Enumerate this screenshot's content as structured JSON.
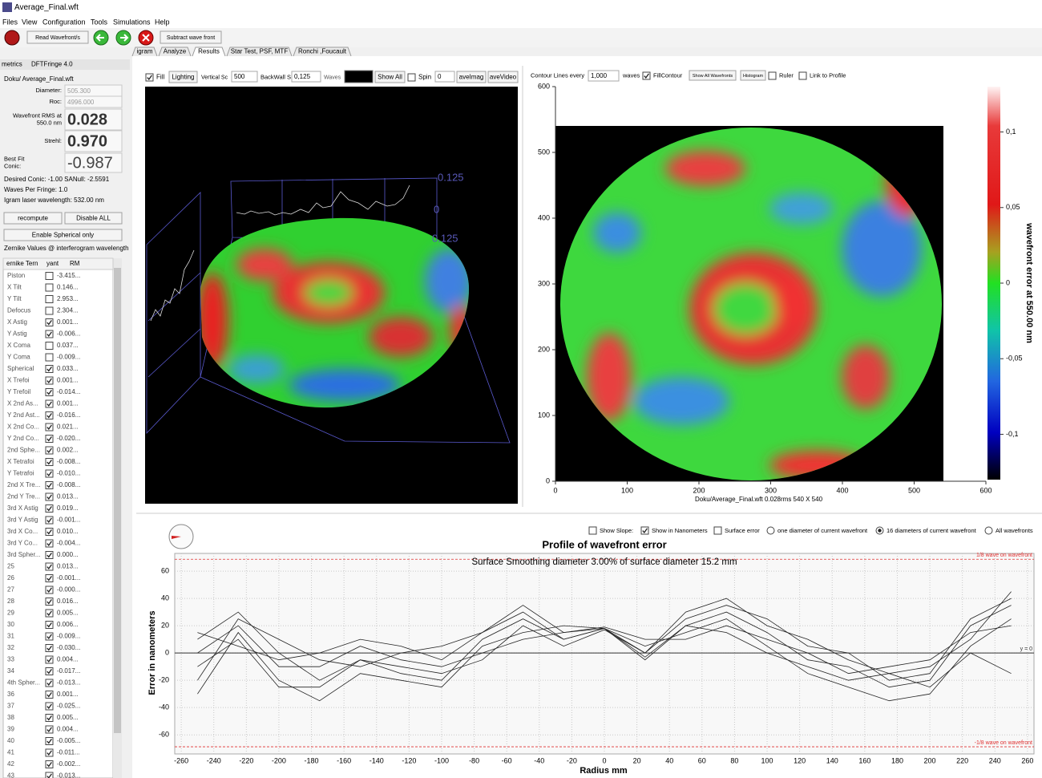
{
  "window": {
    "title": "Average_Final.wft"
  },
  "menu": [
    "Files",
    "View",
    "Configuration",
    "Tools",
    "Simulations",
    "Help"
  ],
  "toolbar": {
    "read": "Read Wavefront/s",
    "subtract": "Subtract wave front"
  },
  "tabs": [
    "igram",
    "Analyze",
    "Results",
    "Star Test, PSF, MTF",
    "Ronchi ,Foucault"
  ],
  "active_tab": 2,
  "left": {
    "dock_title": "metrics",
    "version": "DFTFringe 4.0",
    "file": "Doku/ Average_Final.wft",
    "fields": [
      {
        "label": [
          "Diameter:"
        ],
        "value": "505.300",
        "big": false
      },
      {
        "label": [
          "Roc:"
        ],
        "value": "4996.000",
        "big": false
      },
      {
        "label": [
          "Wavefront RMS at",
          "550.0 nm"
        ],
        "value": "0.028",
        "big": true
      },
      {
        "label": [
          "Strehl:"
        ],
        "value": "0.970",
        "big": true
      },
      {
        "label": [
          "Best Fit",
          "Conic:"
        ],
        "value": "-0.987",
        "big": true
      }
    ],
    "info": [
      "Desired Conic: -1.00 SANull: -2.5591",
      "Waves Per Fringe: 1.0",
      "Igram laser wavelength: 532.00 nm"
    ],
    "buttons": [
      "recompute",
      "Disable ALL",
      "Enable Spherical only"
    ],
    "zernike_caption": "Zernike Values @ interferogram wavelength",
    "zernike_header": [
      "ernike Tern",
      "yant",
      "RM"
    ],
    "zernike": [
      {
        "name": "Piston",
        "checked": false,
        "value": "-3.415..."
      },
      {
        "name": "X Tilt",
        "checked": false,
        "value": "0.146..."
      },
      {
        "name": "Y Tilt",
        "checked": false,
        "value": "2.953..."
      },
      {
        "name": "Defocus",
        "checked": false,
        "value": "2.304..."
      },
      {
        "name": "X Astig",
        "checked": true,
        "value": "0.001..."
      },
      {
        "name": "Y Astig",
        "checked": true,
        "value": "-0.006..."
      },
      {
        "name": "X Coma",
        "checked": false,
        "value": "0.037..."
      },
      {
        "name": "Y Coma",
        "checked": false,
        "value": "-0.009..."
      },
      {
        "name": "Spherical",
        "checked": true,
        "value": "0.033..."
      },
      {
        "name": "X Trefoi",
        "checked": true,
        "value": "0.001..."
      },
      {
        "name": "Y Trefoil",
        "checked": true,
        "value": "-0.014..."
      },
      {
        "name": "X 2nd As...",
        "checked": true,
        "value": "0.001..."
      },
      {
        "name": "Y 2nd Ast...",
        "checked": true,
        "value": "-0.016..."
      },
      {
        "name": "X 2nd Co...",
        "checked": true,
        "value": "0.021..."
      },
      {
        "name": "Y 2nd Co...",
        "checked": true,
        "value": "-0.020..."
      },
      {
        "name": "2nd Sphe...",
        "checked": true,
        "value": "0.002..."
      },
      {
        "name": "X Tetrafoi",
        "checked": true,
        "value": "-0.008..."
      },
      {
        "name": "Y Tetrafoi",
        "checked": true,
        "value": "-0.010..."
      },
      {
        "name": "2nd X Tre...",
        "checked": true,
        "value": "-0.008..."
      },
      {
        "name": "2nd Y Tre...",
        "checked": true,
        "value": "0.013..."
      },
      {
        "name": "3rd X Astig",
        "checked": true,
        "value": "0.019..."
      },
      {
        "name": "3rd Y Astig",
        "checked": true,
        "value": "-0.001..."
      },
      {
        "name": "3rd X Co...",
        "checked": true,
        "value": "0.010..."
      },
      {
        "name": "3rd Y Co...",
        "checked": true,
        "value": "-0.004..."
      },
      {
        "name": "3rd Spher...",
        "checked": true,
        "value": "0.000..."
      },
      {
        "name": "25",
        "checked": true,
        "value": "0.013..."
      },
      {
        "name": "26",
        "checked": true,
        "value": "-0.001..."
      },
      {
        "name": "27",
        "checked": true,
        "value": "-0.000..."
      },
      {
        "name": "28",
        "checked": true,
        "value": "0.016..."
      },
      {
        "name": "29",
        "checked": true,
        "value": "0.005..."
      },
      {
        "name": "30",
        "checked": true,
        "value": "0.006..."
      },
      {
        "name": "31",
        "checked": true,
        "value": "-0.009..."
      },
      {
        "name": "32",
        "checked": true,
        "value": "-0.030..."
      },
      {
        "name": "33",
        "checked": true,
        "value": "0.004..."
      },
      {
        "name": "34",
        "checked": true,
        "value": "-0.017..."
      },
      {
        "name": "4th Spher...",
        "checked": true,
        "value": "-0.013..."
      },
      {
        "name": "36",
        "checked": true,
        "value": "0.001..."
      },
      {
        "name": "37",
        "checked": true,
        "value": "-0.025..."
      },
      {
        "name": "38",
        "checked": true,
        "value": "0.005..."
      },
      {
        "name": "39",
        "checked": true,
        "value": "0.004..."
      },
      {
        "name": "40",
        "checked": true,
        "value": "-0.005..."
      },
      {
        "name": "41",
        "checked": true,
        "value": "-0.011..."
      },
      {
        "name": "42",
        "checked": true,
        "value": "-0.002..."
      },
      {
        "name": "43",
        "checked": true,
        "value": "-0.013..."
      }
    ]
  },
  "view3d": {
    "fill": "Fill",
    "fill_checked": true,
    "lighting": "Lighting",
    "vscale_label": "Vertical Sc",
    "vscale": "500",
    "backwall_label": "BackWall S",
    "backwall": "0,125",
    "waves": "Waves",
    "show_all": "Show All",
    "spin_label": "Spin",
    "spin_checked": false,
    "spin": "0",
    "save_image": "aveImag",
    "save_video": "aveVideo",
    "labels": [
      "0.125",
      "0",
      "0.125"
    ]
  },
  "contour_controls": {
    "lines_label": "Contour Lines every",
    "lines": "1,000",
    "waves": "waves",
    "fill": "FillContour",
    "fill_checked": true,
    "show_all": "Show All Wavefronts",
    "histogram": "Histogram",
    "ruler": "Ruler",
    "ruler_checked": false,
    "link": "Link to Profile",
    "link_checked": false
  },
  "profile_controls": [
    {
      "label": "Show Slope:",
      "kind": "check",
      "on": false
    },
    {
      "label": "Show in Nanometers",
      "kind": "check",
      "on": true
    },
    {
      "label": "Surface error",
      "kind": "check",
      "on": false
    },
    {
      "label": "one diameter of current wavefront",
      "kind": "radio",
      "on": false
    },
    {
      "label": "16 diameters of current wavefront",
      "kind": "radio",
      "on": true
    },
    {
      "label": "All wavefronts",
      "kind": "radio",
      "on": false
    }
  ],
  "chart_data": [
    {
      "type": "image",
      "caption": "Doku/Average_Final.wft  0.028rms 540 X 540",
      "xlim": [
        0,
        600
      ],
      "ylim": [
        0,
        600
      ],
      "xticks": [
        0,
        100,
        200,
        300,
        400,
        500,
        600
      ],
      "yticks": [
        0,
        100,
        200,
        300,
        400,
        500,
        600
      ],
      "colorbar": {
        "label": "wavefront error at 550.00 nm",
        "lim": [
          -0.13,
          0.13
        ],
        "ticks": [
          {
            "value": 0.1,
            "label": "0,1"
          },
          {
            "value": 0.05,
            "label": "0,05"
          },
          0,
          {
            "value": -0.05,
            "label": "-0,05"
          },
          {
            "value": -0.1,
            "label": "-0,1"
          }
        ]
      }
    },
    {
      "type": "line",
      "title": "Profile of wavefront error",
      "subtitle": "Surface Smoothing diameter   3.00% of surface diameter   15.2 mm",
      "xlabel": "Radius mm",
      "ylabel": "Error in nanometers",
      "x": [
        -250,
        -225,
        -200,
        -175,
        -150,
        -125,
        -100,
        -75,
        -50,
        -25,
        0,
        25,
        50,
        75,
        100,
        125,
        150,
        175,
        200,
        225,
        250
      ],
      "series": [
        {
          "color": "#222222",
          "values": [
            -20,
            25,
            10,
            -5,
            -10,
            0,
            5,
            15,
            35,
            15,
            18,
            0,
            30,
            40,
            20,
            10,
            -5,
            -15,
            -10,
            10,
            45
          ]
        },
        {
          "color": "#222222",
          "values": [
            10,
            30,
            0,
            -20,
            -5,
            -15,
            -20,
            10,
            25,
            10,
            18,
            -5,
            20,
            30,
            15,
            -5,
            -10,
            -25,
            -20,
            20,
            35
          ]
        },
        {
          "color": "#222222",
          "values": [
            -30,
            15,
            -20,
            -35,
            -15,
            -20,
            -25,
            5,
            15,
            20,
            18,
            5,
            15,
            25,
            5,
            -15,
            -25,
            -35,
            -30,
            5,
            25
          ]
        },
        {
          "color": "#222222",
          "values": [
            0,
            20,
            -10,
            -10,
            5,
            -5,
            -10,
            0,
            10,
            15,
            19,
            10,
            10,
            20,
            10,
            0,
            -15,
            -10,
            -5,
            15,
            20
          ]
        },
        {
          "color": "#222222",
          "values": [
            -10,
            10,
            -25,
            -25,
            -5,
            -10,
            -15,
            -5,
            20,
            5,
            17,
            0,
            25,
            35,
            25,
            5,
            0,
            -20,
            -15,
            25,
            40
          ]
        },
        {
          "color": "#222222",
          "values": [
            15,
            5,
            -5,
            0,
            10,
            5,
            -5,
            15,
            30,
            10,
            18,
            -3,
            20,
            15,
            0,
            -10,
            -20,
            -15,
            -25,
            0,
            -15
          ]
        }
      ],
      "xlim": [
        -264,
        264
      ],
      "ylim": [
        -74,
        73
      ],
      "xticks": [
        -260,
        -240,
        -220,
        -200,
        -180,
        -160,
        -140,
        -120,
        -100,
        -80,
        -60,
        -40,
        -20,
        0,
        20,
        40,
        60,
        80,
        100,
        120,
        140,
        160,
        180,
        200,
        220,
        240,
        260
      ],
      "yticks": [
        -60,
        -40,
        -20,
        0,
        20,
        40,
        60
      ],
      "grid": true,
      "annotations": [
        {
          "text": "1/8 wave on wavefront",
          "value": 68.75,
          "color": "#e03030"
        },
        {
          "text": "-1/8 wave on wavefront",
          "value": -68.75,
          "color": "#e03030"
        },
        {
          "text": "y = 0",
          "value": 0,
          "color": "#333333"
        }
      ]
    }
  ]
}
